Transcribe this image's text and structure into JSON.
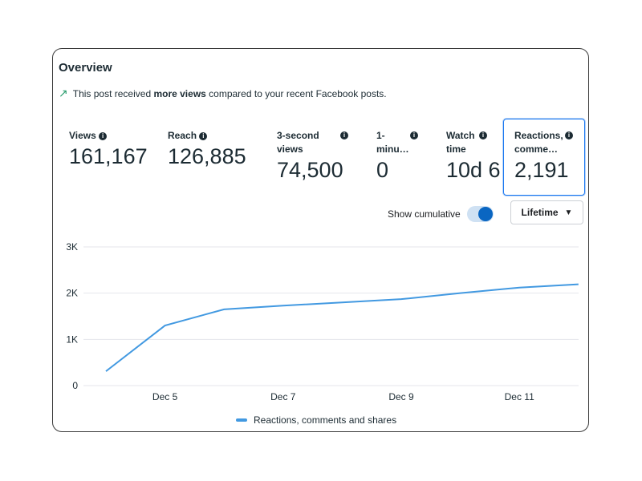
{
  "title": "Overview",
  "note": {
    "prefix": "This post received ",
    "bold": "more views",
    "suffix": " compared to your recent Facebook posts.",
    "icon": "trending-up-icon"
  },
  "metrics": [
    {
      "label": "Views",
      "value": "161,167"
    },
    {
      "label": "Reach",
      "value": "126,885"
    },
    {
      "label": "3-second views",
      "value": "74,500"
    },
    {
      "label": "1-minu…",
      "value": "0"
    },
    {
      "label": "Watch time",
      "value": "10d 6"
    },
    {
      "label": "Reactions, comme…",
      "value": "2,191",
      "selected": true
    }
  ],
  "controls": {
    "cumulative_label": "Show cumulative",
    "cumulative_on": true,
    "range": "Lifetime"
  },
  "colors": {
    "series": "#4299e1",
    "accent": "#0a66c2"
  },
  "chart_data": {
    "type": "line",
    "x": [
      "Dec 4",
      "Dec 5",
      "Dec 6",
      "Dec 7",
      "Dec 8",
      "Dec 9",
      "Dec 10",
      "Dec 11",
      "Dec 12"
    ],
    "series": [
      {
        "name": "Reactions, comments and shares",
        "values": [
          310,
          1300,
          1650,
          1730,
          1800,
          1870,
          2000,
          2120,
          2191
        ]
      }
    ],
    "xticks": [
      "Dec 5",
      "Dec 7",
      "Dec 9",
      "Dec 11"
    ],
    "yticks": [
      "0",
      "1K",
      "2K",
      "3K"
    ],
    "ylim": [
      0,
      3000
    ],
    "grid": true,
    "legend": "bottom"
  }
}
